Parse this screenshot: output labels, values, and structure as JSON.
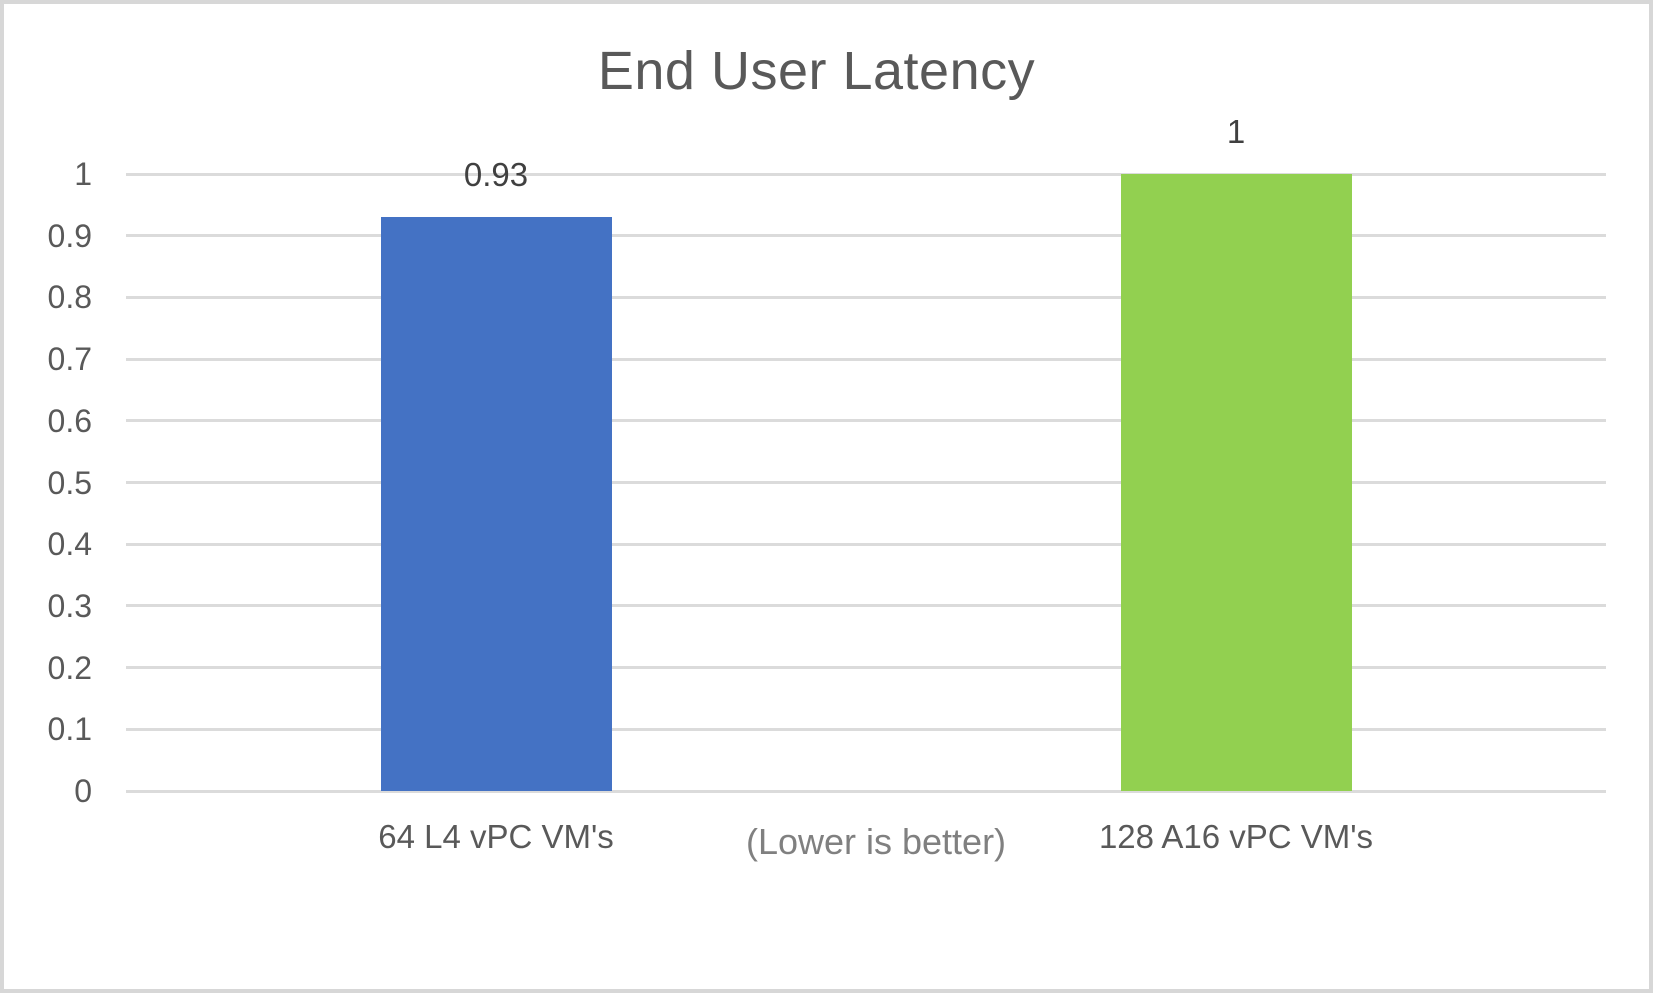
{
  "chart_data": {
    "type": "bar",
    "title": "End User Latency",
    "categories": [
      "64 L4 vPC VM's",
      "128 A16 vPC VM's"
    ],
    "values": [
      0.93,
      1
    ],
    "data_labels": [
      "0.93",
      "1"
    ],
    "bar_colors": [
      "#4472C4",
      "#92D050"
    ],
    "annotation": "(Lower is better)",
    "xlabel": "",
    "ylabel": "",
    "ylim": [
      0,
      1
    ],
    "ytick_step": 0.1,
    "ytick_labels": [
      "0",
      "0.1",
      "0.2",
      "0.3",
      "0.4",
      "0.5",
      "0.6",
      "0.7",
      "0.8",
      "0.9",
      "1"
    ],
    "grid": true,
    "legend": "none"
  },
  "colors": {
    "background": "#ffffff",
    "frame_border": "#d7d7d7",
    "gridline": "#dbdbdb",
    "title_text": "#595959",
    "tick_text": "#595959",
    "category_text": "#595959",
    "data_label_text": "#404040",
    "annotation_text": "#808080"
  }
}
